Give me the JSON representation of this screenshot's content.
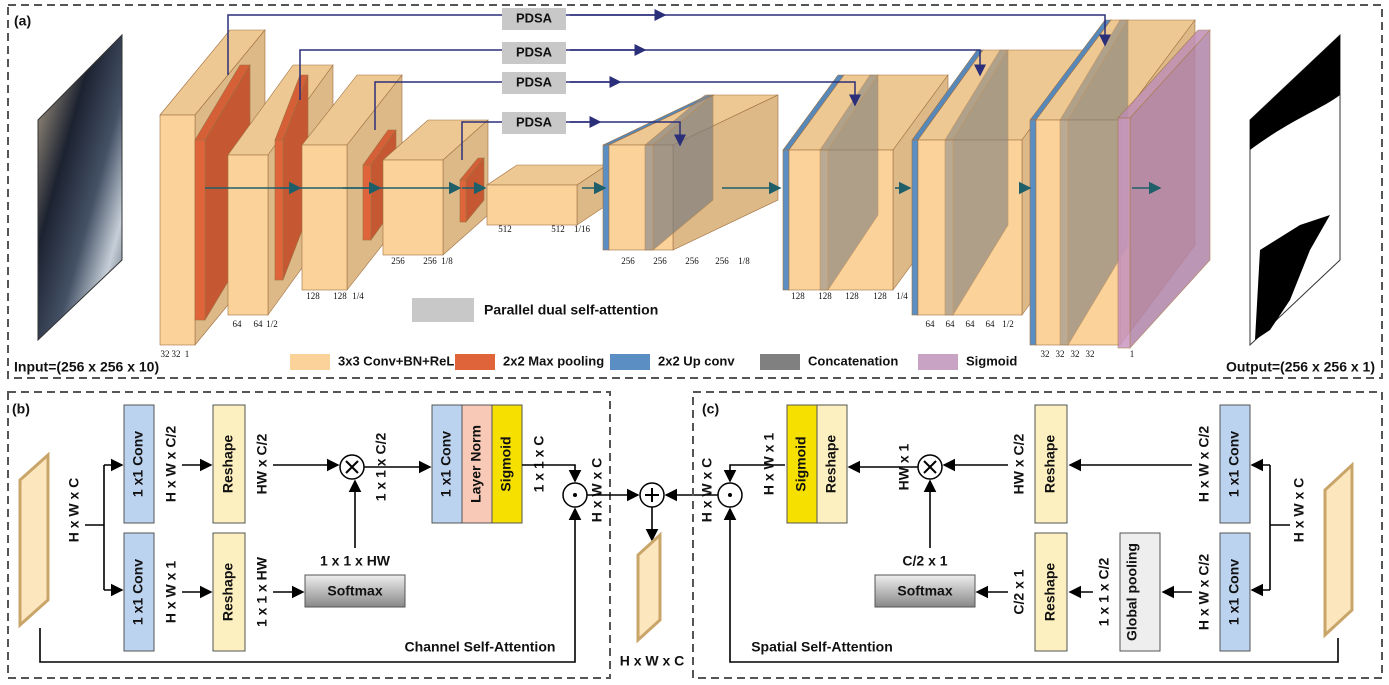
{
  "panel_a": {
    "label": "(a)",
    "pdsa": [
      "PDSA",
      "PDSA",
      "PDSA",
      "PDSA"
    ],
    "input": "Input=(256 x 256 x 10)",
    "output": "Output=(256 x 256 x 1)",
    "attention_legend": "Parallel dual self-attention",
    "legend": [
      "3x3 Conv+BN+ReLU",
      "2x2 Max pooling",
      "2x2 Up conv",
      "Concatenation",
      "Sigmoid"
    ],
    "stages": [
      [
        "32",
        "32",
        "1"
      ],
      [
        "64",
        "64",
        "1/2"
      ],
      [
        "128",
        "128",
        "1/4"
      ],
      [
        "256",
        "256",
        "1/8"
      ],
      [
        "512",
        "512",
        "1/16"
      ],
      [
        "256",
        "256",
        "256",
        "256",
        "1/8"
      ],
      [
        "128",
        "128",
        "128",
        "128",
        "1/4"
      ],
      [
        "64",
        "64",
        "64",
        "64",
        "1/2"
      ],
      [
        "32",
        "32",
        "32",
        "32",
        "1"
      ]
    ]
  },
  "panel_b": {
    "label": "(b)",
    "input_dim": "H x W x C",
    "conv_top": "1 x1 Conv",
    "conv_top_dim": "H x W x C/2",
    "reshape_top": "Reshape",
    "reshape_top_dim": "HW x C/2",
    "matmul_dim": "1 x 1 x C/2",
    "conv_bottom": "1 x1 Conv",
    "conv_bottom_dim": "H x W x 1",
    "reshape_bottom": "Reshape",
    "reshape_bottom_dim": "1 x 1 x HW",
    "softmax_dim": "1 x 1 x HW",
    "softmax": "Softmax",
    "conv_out": "1 x1 Conv",
    "layer_norm": "Layer Norm",
    "sigmoid": "Sigmoid",
    "sigmoid_dim": "1 x 1 x C",
    "output_dim": "H x W x C",
    "title": "Channel Self-Attention"
  },
  "fusion": {
    "output_dim": "H x W x C"
  },
  "panel_c": {
    "label": "(c)",
    "input_dim": "H x W x C",
    "conv_top": "1 x1 Conv",
    "conv_top_dim": "H x W x C/2",
    "reshape_top": "Reshape",
    "reshape_top_dim": "HW x C/2",
    "matmul_dim": "HW x 1",
    "conv_bottom": "1 x1 Conv",
    "conv_bottom_dim": "H x W x C/2",
    "pooling": "Global pooling",
    "pooling_dim": "1 x 1 x C/2",
    "reshape_bottom": "Reshape",
    "reshape_bottom_dim": "C/2 x 1",
    "softmax_dim": "C/2 x 1",
    "softmax": "Softmax",
    "sigmoid": "Sigmoid",
    "reshape_out": "Reshape",
    "sigmoid_dim": "H x W x 1",
    "output_dim": "H x W x C",
    "title": "Spatial Self-Attention"
  }
}
